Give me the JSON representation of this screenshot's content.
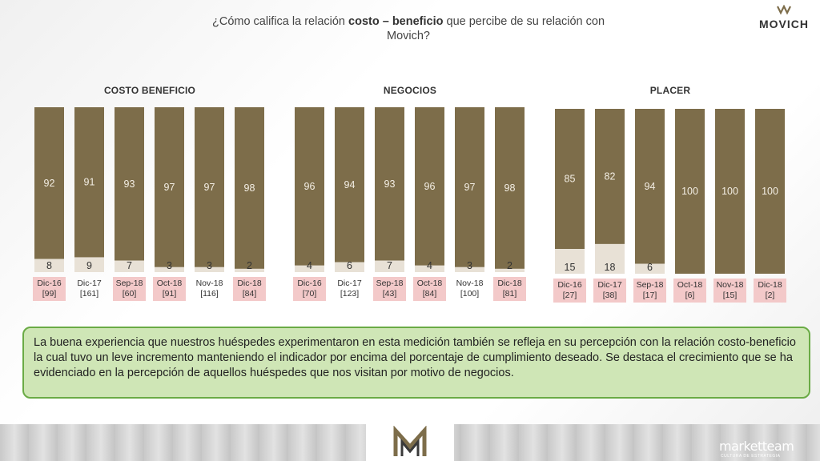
{
  "header": {
    "question_pre": "¿Cómo califica la relación ",
    "question_bold": "costo – beneficio",
    "question_post": " que percibe de su relación con Movich?",
    "logo_text": "MOVICH"
  },
  "commentary": "La buena experiencia que nuestros huéspedes experimentaron en esta medición también se refleja en su percepción con la relación costo-beneficio la cual tuvo un leve incremento manteniendo el indicador por encima del porcentaje de cumplimiento deseado.  Se destaca el crecimiento que se ha evidenciado en la percepción de aquellos huéspedes que nos visitan por motivo de negocios.",
  "footer": {
    "brand": "marketteam",
    "brand_sub": "CULTURA DE ESTRATEGIA"
  },
  "colors": {
    "positive": "#7d6d4a",
    "negative": "#e8e1d6",
    "highlight_label": "#f3c9c9"
  },
  "chart_data": [
    {
      "type": "bar",
      "stacked": true,
      "title": "COSTO BENEFICIO",
      "categories": [
        "Dic-16",
        "Dic-17",
        "Sep-18",
        "Oct-18",
        "Nov-18",
        "Dic-18"
      ],
      "bases": [
        "[99]",
        "[161]",
        "[60]",
        "[91]",
        "[116]",
        "[84]"
      ],
      "highlighted": [
        true,
        false,
        true,
        true,
        false,
        true
      ],
      "series": [
        {
          "values": [
            92,
            91,
            93,
            97,
            97,
            98
          ]
        },
        {
          "values": [
            8,
            9,
            7,
            3,
            3,
            2
          ]
        }
      ],
      "ylim": [
        0,
        100
      ]
    },
    {
      "type": "bar",
      "stacked": true,
      "title": "NEGOCIOS",
      "categories": [
        "Dic-16",
        "Dic-17",
        "Sep-18",
        "Oct-18",
        "Nov-18",
        "Dic-18"
      ],
      "bases": [
        "[70]",
        "[123]",
        "[43]",
        "[84]",
        "[100]",
        "[81]"
      ],
      "highlighted": [
        true,
        false,
        true,
        true,
        false,
        true
      ],
      "series": [
        {
          "values": [
            96,
            94,
            93,
            96,
            97,
            98
          ]
        },
        {
          "values": [
            4,
            6,
            7,
            4,
            3,
            2
          ]
        }
      ],
      "ylim": [
        0,
        100
      ]
    },
    {
      "type": "bar",
      "stacked": true,
      "title": "PLACER",
      "categories": [
        "Dic-16",
        "Dic-17",
        "Sep-18",
        "Oct-18",
        "Nov-18",
        "Dic-18"
      ],
      "bases": [
        "[27]",
        "[38]",
        "[17]",
        "[6]",
        "[15]",
        "[2]"
      ],
      "highlighted": [
        true,
        true,
        true,
        true,
        true,
        true
      ],
      "series": [
        {
          "values": [
            85,
            82,
            94,
            100,
            100,
            100
          ]
        },
        {
          "values": [
            15,
            18,
            6,
            null,
            null,
            null
          ]
        }
      ],
      "ylim": [
        0,
        100
      ]
    }
  ]
}
